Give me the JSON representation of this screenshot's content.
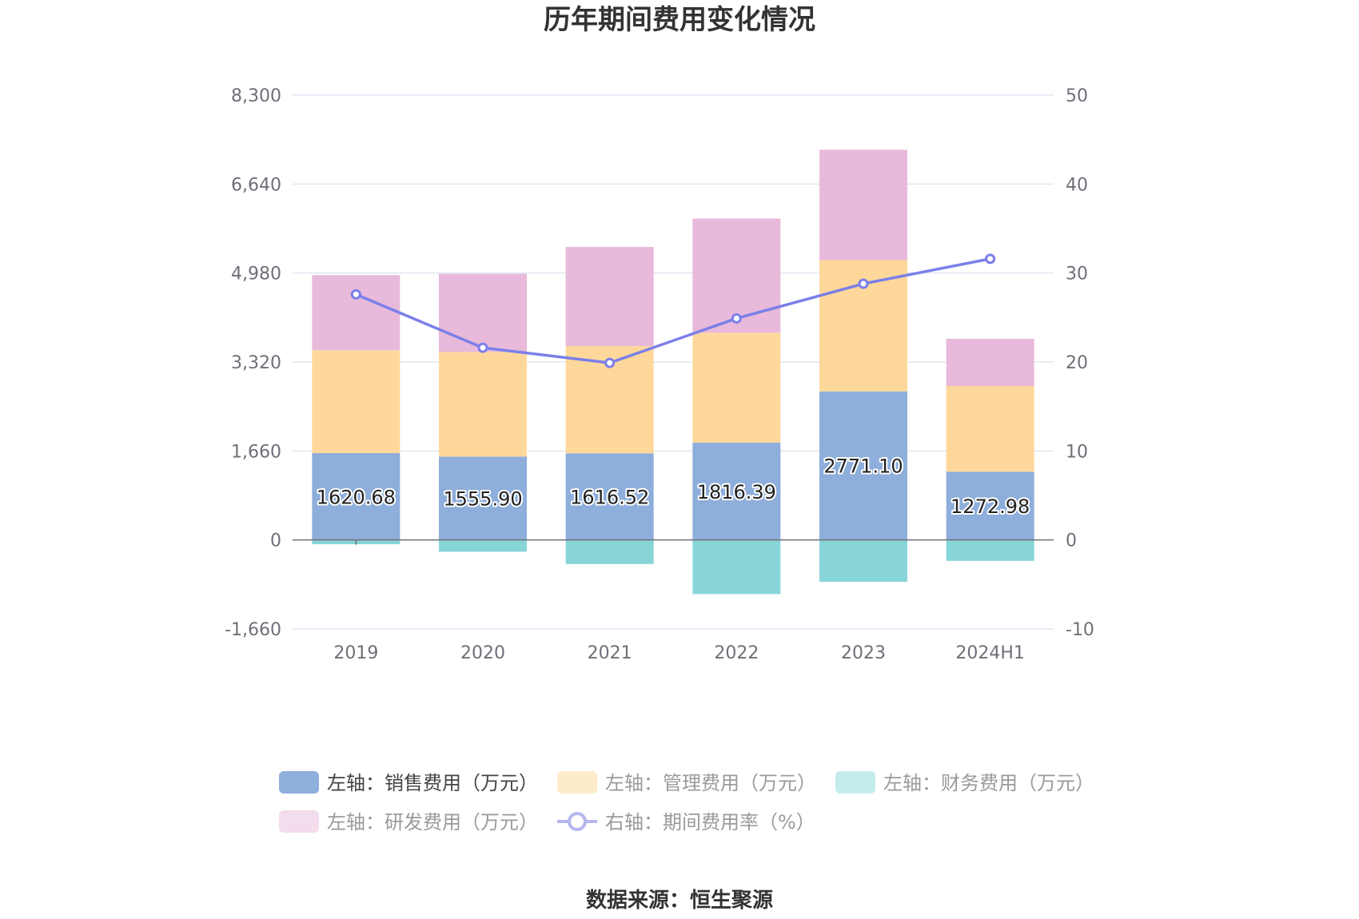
{
  "chart_data": {
    "type": "bar",
    "stacked": true,
    "title": "历年期间费用变化情况",
    "categories": [
      "2019",
      "2020",
      "2021",
      "2022",
      "2023",
      "2024H1"
    ],
    "series": [
      {
        "name": "左轴：销售费用（万元）",
        "axis": "left",
        "color": "#8eaedb",
        "legend_color": "#8eaedb",
        "legend_text_color": "#444444",
        "values": [
          1620.68,
          1555.9,
          1616.52,
          1816.39,
          2771.1,
          1272.98
        ],
        "labels": [
          "1620.68",
          "1555.90",
          "1616.52",
          "1816.39",
          "2771.10",
          "1272.98"
        ]
      },
      {
        "name": "左轴：管理费用（万元）",
        "axis": "left",
        "color": "#fed89b",
        "legend_color": "#feebc9",
        "legend_text_color": "#9a9a9a",
        "values": [
          1920,
          1950,
          2000,
          2050,
          2450,
          1600
        ]
      },
      {
        "name": "左轴：财务费用（万元）",
        "axis": "left",
        "color": "#88d5d8",
        "legend_color": "#c4ecec",
        "legend_text_color": "#9a9a9a",
        "values": [
          -80,
          -220,
          -450,
          -1010,
          -780,
          -390
        ]
      },
      {
        "name": "左轴：研发费用（万元）",
        "axis": "left",
        "color": "#e8b9da",
        "legend_color": "#f3dcec",
        "legend_text_color": "#9a9a9a",
        "values": [
          1400,
          1460,
          1850,
          2130,
          2060,
          880
        ]
      }
    ],
    "line_series": {
      "name": "右轴：期间费用率（%）",
      "axis": "right",
      "color": "#7b7fe9",
      "legend_color": "#b5b7f2",
      "legend_text_color": "#9a9a9a",
      "values": [
        27.6,
        21.6,
        19.9,
        24.9,
        28.8,
        31.6
      ]
    },
    "left_axis": {
      "ylim": [
        -1660,
        8300
      ],
      "ticks": [
        -1660,
        0,
        1660,
        3320,
        4980,
        6640,
        8300
      ],
      "tick_labels": [
        "-1,660",
        "0",
        "1,660",
        "3,320",
        "4,980",
        "6,640",
        "8,300"
      ]
    },
    "right_axis": {
      "ylim": [
        -10,
        50
      ],
      "ticks": [
        -10,
        0,
        10,
        20,
        30,
        40,
        50
      ],
      "tick_labels": [
        "-10",
        "0",
        "10",
        "20",
        "30",
        "40",
        "50"
      ]
    },
    "grid": true,
    "legend_position": "bottom"
  },
  "source": "数据来源：恒生聚源"
}
